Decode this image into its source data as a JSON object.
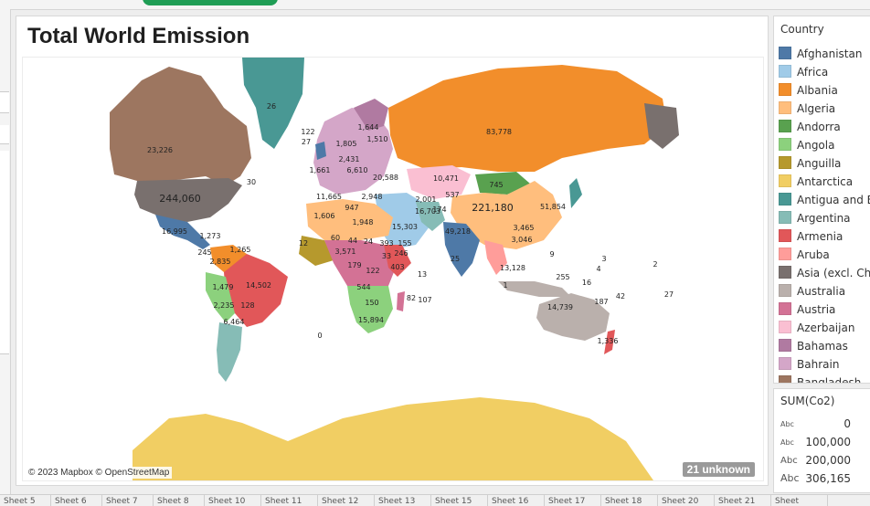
{
  "dashboard": {
    "title": "Total World Emission",
    "attribution": "© 2023 Mapbox © OpenStreetMap",
    "unknown_badge": "21 unknown"
  },
  "legend": {
    "title": "Country",
    "items": [
      {
        "label": "Afghanistan",
        "color": "#4e79a7"
      },
      {
        "label": "Africa",
        "color": "#a0cbe8"
      },
      {
        "label": "Albania",
        "color": "#f28e2b"
      },
      {
        "label": "Algeria",
        "color": "#ffbe7d"
      },
      {
        "label": "Andorra",
        "color": "#59a14f"
      },
      {
        "label": "Angola",
        "color": "#8cd17d"
      },
      {
        "label": "Anguilla",
        "color": "#b6992d"
      },
      {
        "label": "Antarctica",
        "color": "#f1ce63"
      },
      {
        "label": "Antigua and Ba",
        "color": "#499894"
      },
      {
        "label": "Argentina",
        "color": "#86bcb6"
      },
      {
        "label": "Armenia",
        "color": "#e15759"
      },
      {
        "label": "Aruba",
        "color": "#ff9d9a"
      },
      {
        "label": "Asia (excl. Chin",
        "color": "#79706e"
      },
      {
        "label": "Australia",
        "color": "#bab0ac"
      },
      {
        "label": "Austria",
        "color": "#d37295"
      },
      {
        "label": "Azerbaijan",
        "color": "#fabfd2"
      },
      {
        "label": "Bahamas",
        "color": "#b07aa1"
      },
      {
        "label": "Bahrain",
        "color": "#d4a6c8"
      },
      {
        "label": "Bangladesh",
        "color": "#9d7660"
      }
    ]
  },
  "size_legend": {
    "title": "SUM(Co2)",
    "rows": [
      {
        "abc": "Abc",
        "value": "0"
      },
      {
        "abc": "Abc",
        "value": "100,000"
      },
      {
        "abc": "Abc",
        "value": "200,000"
      },
      {
        "abc": "Abc",
        "value": "306,165"
      }
    ]
  },
  "map_labels": [
    {
      "text": "26"
    },
    {
      "text": "23,226"
    },
    {
      "text": "244,060"
    },
    {
      "text": "83,778"
    },
    {
      "text": "221,180"
    },
    {
      "text": "10,471"
    },
    {
      "text": "745"
    },
    {
      "text": "51,854"
    },
    {
      "text": "49,218"
    },
    {
      "text": "16,703"
    },
    {
      "text": "15,303"
    },
    {
      "text": "14,502"
    },
    {
      "text": "14,739"
    },
    {
      "text": "6,464"
    },
    {
      "text": "16,995"
    },
    {
      "text": "11,665"
    },
    {
      "text": "1,606"
    },
    {
      "text": "1,948"
    },
    {
      "text": "393"
    },
    {
      "text": "3,571"
    },
    {
      "text": "122"
    },
    {
      "text": "544"
    },
    {
      "text": "150"
    },
    {
      "text": "15,894"
    },
    {
      "text": "2,835"
    },
    {
      "text": "1,479"
    },
    {
      "text": "2,235"
    },
    {
      "text": "128"
    },
    {
      "text": "1,336"
    },
    {
      "text": "122"
    },
    {
      "text": "27"
    },
    {
      "text": "1,805"
    },
    {
      "text": "1,644"
    },
    {
      "text": "1,510"
    },
    {
      "text": "2,431"
    },
    {
      "text": "20,588"
    },
    {
      "text": "2,001"
    },
    {
      "text": "537"
    },
    {
      "text": "174"
    },
    {
      "text": "3,465"
    },
    {
      "text": "3,046"
    },
    {
      "text": "13,128"
    },
    {
      "text": "255"
    },
    {
      "text": "107"
    },
    {
      "text": "82"
    },
    {
      "text": "13"
    },
    {
      "text": "25"
    },
    {
      "text": "0"
    },
    {
      "text": "9"
    },
    {
      "text": "1,265"
    },
    {
      "text": "245"
    },
    {
      "text": "12"
    },
    {
      "text": "60"
    },
    {
      "text": "44"
    },
    {
      "text": "24"
    },
    {
      "text": "179"
    },
    {
      "text": "403"
    },
    {
      "text": "246"
    },
    {
      "text": "33"
    },
    {
      "text": "155"
    },
    {
      "text": "1"
    },
    {
      "text": "2"
    },
    {
      "text": "3"
    },
    {
      "text": "4"
    },
    {
      "text": "187"
    },
    {
      "text": "42"
    },
    {
      "text": "27"
    },
    {
      "text": "16"
    },
    {
      "text": "1,273"
    },
    {
      "text": "1,661"
    },
    {
      "text": "6,610"
    },
    {
      "text": "2,948"
    },
    {
      "text": "947"
    },
    {
      "text": "30"
    }
  ],
  "tabs": [
    "Sheet 5",
    "Sheet 6",
    "Sheet 7",
    "Sheet 8",
    "Sheet 10",
    "Sheet 11",
    "Sheet 12",
    "Sheet 13",
    "Sheet 15",
    "Sheet 16",
    "Sheet 17",
    "Sheet 18",
    "Sheet 20",
    "Sheet 21",
    "Sheet"
  ]
}
